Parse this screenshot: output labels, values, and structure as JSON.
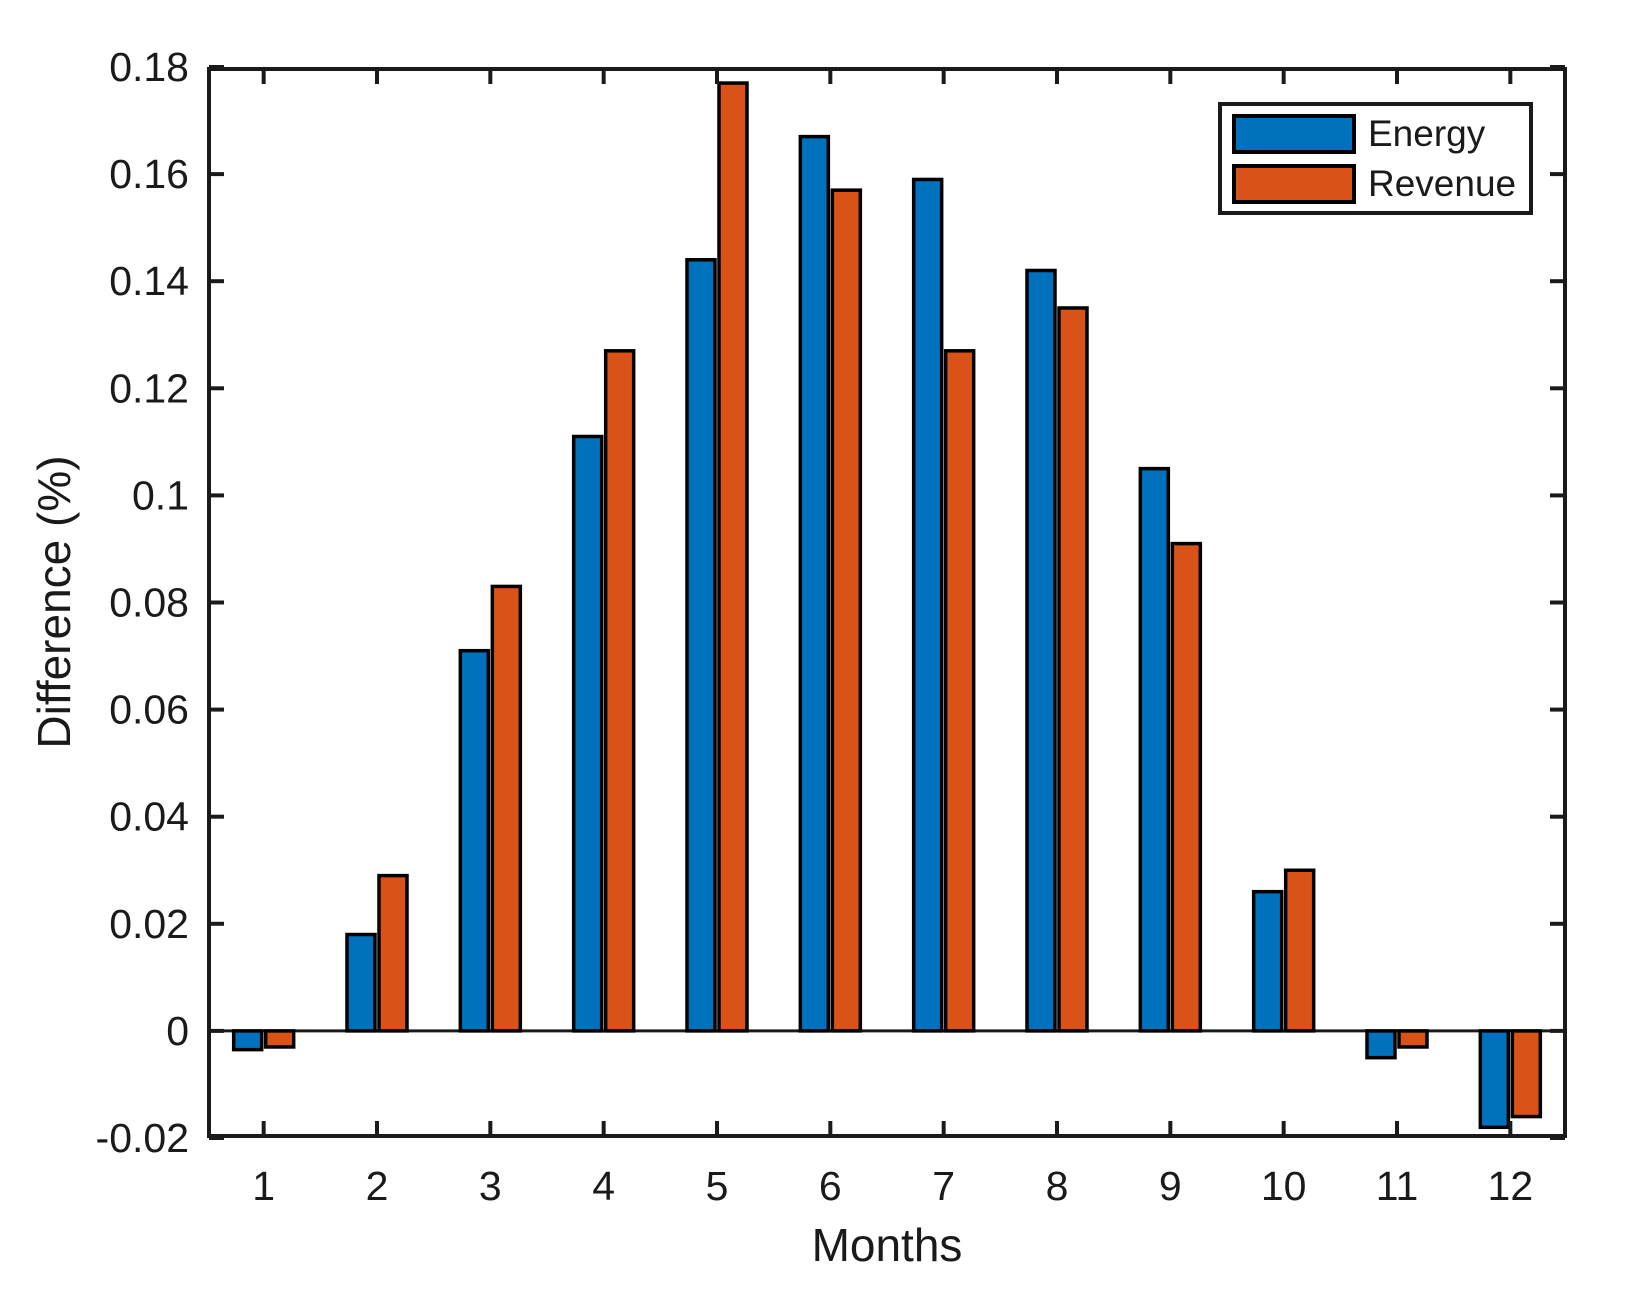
{
  "chart_data": {
    "type": "bar",
    "title": "",
    "xlabel": "Months",
    "ylabel": "Difference (%)",
    "categories": [
      1,
      2,
      3,
      4,
      5,
      6,
      7,
      8,
      9,
      10,
      11,
      12
    ],
    "x_tick_labels": [
      "1",
      "2",
      "3",
      "4",
      "5",
      "6",
      "7",
      "8",
      "9",
      "10",
      "11",
      "12"
    ],
    "series": [
      {
        "name": "Energy",
        "color": "#0072BD",
        "values": [
          -0.0035,
          0.018,
          0.071,
          0.111,
          0.144,
          0.167,
          0.159,
          0.142,
          0.105,
          0.026,
          -0.005,
          -0.018
        ]
      },
      {
        "name": "Revenue",
        "color": "#D95319",
        "values": [
          -0.003,
          0.029,
          0.083,
          0.127,
          0.177,
          0.157,
          0.127,
          0.135,
          0.091,
          0.03,
          -0.003,
          -0.016
        ]
      }
    ],
    "ylim": [
      -0.02,
      0.18
    ],
    "ytick_step": 0.02,
    "y_tick_labels": [
      "-0.02",
      "0",
      "0.02",
      "0.04",
      "0.06",
      "0.08",
      "0.1",
      "0.12",
      "0.14",
      "0.16",
      "0.18"
    ],
    "bar_edge_color": "#000000",
    "axis_color": "#1a1a1a",
    "grid": false,
    "legend": {
      "position": "top-right",
      "entries": [
        "Energy",
        "Revenue"
      ]
    }
  }
}
